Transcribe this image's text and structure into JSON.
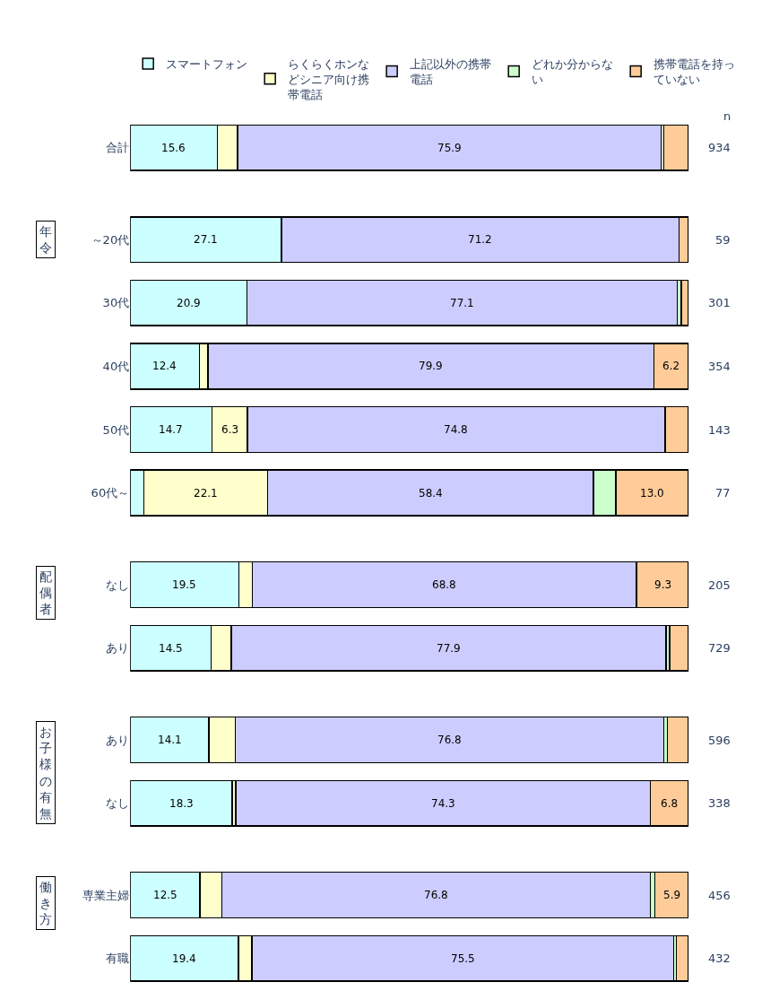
{
  "chart_data": {
    "type": "bar",
    "orientation": "horizontal",
    "stacked": true,
    "legend": "top",
    "categories": [
      "合計",
      "～20代",
      "30代",
      "40代",
      "50代",
      "60代～",
      "なし",
      "あり",
      "あり",
      "なし",
      "専業主婦",
      "有職"
    ],
    "series": [
      {
        "name": "スマートフォン",
        "color": "#ccffff",
        "values": [
          15.6,
          27.1,
          20.9,
          12.4,
          14.7,
          2.5,
          19.5,
          14.5,
          14.1,
          18.3,
          12.5,
          19.4
        ],
        "value_labels": [
          "15.6",
          "27.1",
          "20.9",
          "12.4",
          "14.7",
          null,
          "19.5",
          "14.5",
          "14.1",
          "18.3",
          "12.5",
          "19.4"
        ]
      },
      {
        "name": "らくらくホンなどシニア向け携帯電話",
        "color": "#ffffcc",
        "values": [
          3.6,
          0,
          0,
          1.5,
          6.3,
          22.1,
          2.4,
          3.6,
          4.7,
          0.6,
          3.9,
          2.4
        ],
        "value_labels": [
          null,
          null,
          null,
          null,
          "6.3",
          "22.1",
          null,
          null,
          null,
          null,
          null,
          null
        ]
      },
      {
        "name": "上記以外の携帯電話",
        "color": "#ccccff",
        "values": [
          75.9,
          71.2,
          77.1,
          79.9,
          74.8,
          58.4,
          68.8,
          77.9,
          76.8,
          74.3,
          76.8,
          75.5
        ],
        "value_labels": [
          "75.9",
          "71.2",
          "77.1",
          "79.9",
          "74.8",
          "58.4",
          "68.8",
          "77.9",
          "76.8",
          "74.3",
          "76.8",
          "75.5"
        ]
      },
      {
        "name": "どれか分からない",
        "color": "#ccffcc",
        "values": [
          0.5,
          0,
          0.7,
          0,
          0,
          4.0,
          0,
          0.6,
          0.6,
          0,
          0.8,
          0.5
        ]
      },
      {
        "name": "携帯電話を持っていない",
        "color": "#ffcc99",
        "values": [
          4.4,
          1.7,
          1.3,
          6.2,
          4.2,
          13.0,
          9.3,
          3.4,
          3.8,
          6.8,
          5.9,
          2.2
        ],
        "value_labels": [
          null,
          null,
          null,
          "6.2",
          null,
          "13.0",
          "9.3",
          null,
          null,
          "6.8",
          "5.9",
          null
        ]
      }
    ],
    "annotations": [
      "n",
      "934",
      "59",
      "301",
      "354",
      "143",
      "77",
      "205",
      "729",
      "596",
      "338",
      "456",
      "432",
      "年令",
      "配偶者",
      "お子様の有無",
      "働き方"
    ]
  }
}
